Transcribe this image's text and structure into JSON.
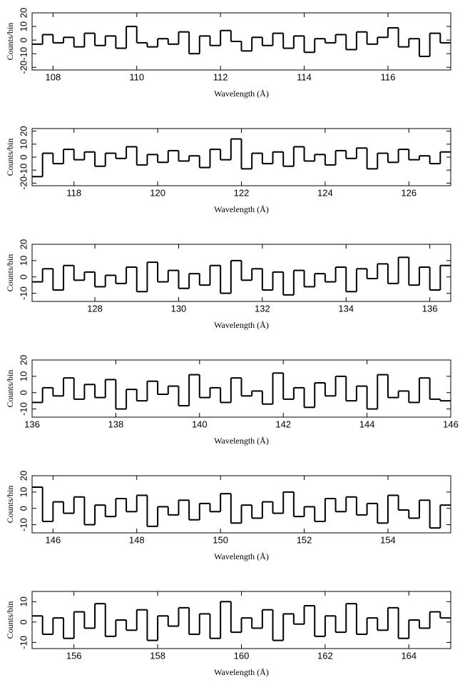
{
  "chart_data": [
    {
      "type": "histogram",
      "xlabel": "Wavelength (Å)",
      "ylabel": "Counts/bin",
      "color": "#000000",
      "bins": [
        107.5,
        107.75,
        108,
        108.25,
        108.5,
        108.75,
        109,
        109.25,
        109.5,
        109.75,
        110,
        110.25,
        110.5,
        110.75,
        111,
        111.25,
        111.5,
        111.75,
        112,
        112.25,
        112.5,
        112.75,
        113,
        113.25,
        113.5,
        113.75,
        114,
        114.25,
        114.5,
        114.75,
        115,
        115.25,
        115.5,
        115.75,
        116,
        116.25,
        116.5,
        116.75,
        117,
        117.25,
        117.5
      ],
      "values": [
        -3,
        4,
        -2,
        2,
        -5,
        5,
        -4,
        3,
        -6,
        10,
        -2,
        -5,
        1,
        -3,
        6,
        -10,
        3,
        -4,
        7,
        -1,
        -8,
        2,
        -4,
        5,
        -6,
        3,
        -9,
        1,
        -2,
        4,
        -7,
        6,
        -3,
        2,
        9,
        -5,
        1,
        -12,
        5,
        -2
      ],
      "xlim": [
        107.5,
        117.5
      ],
      "xticks": [
        108,
        110,
        112,
        114,
        116
      ],
      "ylim": [
        -22,
        20
      ],
      "yticks": [
        -20,
        -10,
        0,
        10,
        20
      ]
    },
    {
      "type": "histogram",
      "xlabel": "Wavelength (Å)",
      "ylabel": "Counts/bin",
      "color": "#000000",
      "bins": [
        117,
        117.25,
        117.5,
        117.75,
        118,
        118.25,
        118.5,
        118.75,
        119,
        119.25,
        119.5,
        119.75,
        120,
        120.25,
        120.5,
        120.75,
        121,
        121.25,
        121.5,
        121.75,
        122,
        122.25,
        122.5,
        122.75,
        123,
        123.25,
        123.5,
        123.75,
        124,
        124.25,
        124.5,
        124.75,
        125,
        125.25,
        125.5,
        125.75,
        126,
        126.25,
        126.5,
        126.75,
        127
      ],
      "values": [
        -15,
        3,
        -5,
        6,
        -2,
        4,
        -7,
        3,
        -1,
        8,
        -6,
        2,
        -4,
        5,
        -3,
        1,
        -8,
        6,
        -2,
        14,
        -9,
        3,
        -5,
        4,
        -7,
        8,
        -3,
        2,
        -6,
        5,
        -1,
        7,
        -9,
        3,
        -4,
        6,
        -2,
        1,
        -5,
        4
      ],
      "xlim": [
        117,
        127
      ],
      "xticks": [
        118,
        120,
        122,
        124,
        126
      ],
      "ylim": [
        -22,
        22
      ],
      "yticks": [
        -20,
        -10,
        0,
        10,
        20
      ]
    },
    {
      "type": "histogram",
      "xlabel": "Wavelength (Å)",
      "ylabel": "Counts/bin",
      "color": "#000000",
      "bins": [
        126.5,
        126.75,
        127,
        127.25,
        127.5,
        127.75,
        128,
        128.25,
        128.5,
        128.75,
        129,
        129.25,
        129.5,
        129.75,
        130,
        130.25,
        130.5,
        130.75,
        131,
        131.25,
        131.5,
        131.75,
        132,
        132.25,
        132.5,
        132.75,
        133,
        133.25,
        133.5,
        133.75,
        134,
        134.25,
        134.5,
        134.75,
        135,
        135.25,
        135.5,
        135.75,
        136,
        136.25,
        136.5
      ],
      "values": [
        -3,
        5,
        -8,
        7,
        -2,
        3,
        -6,
        1,
        -4,
        6,
        -9,
        9,
        -3,
        4,
        -7,
        2,
        -5,
        7,
        -10,
        10,
        -2,
        5,
        -8,
        3,
        -11,
        4,
        -6,
        2,
        -3,
        6,
        -9,
        5,
        -1,
        8,
        -4,
        12,
        -5,
        6,
        -8,
        7
      ],
      "xlim": [
        126.5,
        136.5
      ],
      "xticks": [
        128,
        130,
        132,
        134,
        136
      ],
      "ylim": [
        -15,
        20
      ],
      "yticks": [
        -10,
        0,
        10,
        20
      ]
    },
    {
      "type": "histogram",
      "xlabel": "Wavelength (Å)",
      "ylabel": "Counts/bin",
      "color": "#000000",
      "bins": [
        136,
        136.25,
        136.5,
        136.75,
        137,
        137.25,
        137.5,
        137.75,
        138,
        138.25,
        138.5,
        138.75,
        139,
        139.25,
        139.5,
        139.75,
        140,
        140.25,
        140.5,
        140.75,
        141,
        141.25,
        141.5,
        141.75,
        142,
        142.25,
        142.5,
        142.75,
        143,
        143.25,
        143.5,
        143.75,
        144,
        144.25,
        144.5,
        144.75,
        145,
        145.25,
        145.5,
        145.75,
        146
      ],
      "values": [
        -6,
        3,
        -2,
        9,
        -4,
        5,
        -3,
        8,
        -10,
        2,
        -5,
        7,
        -1,
        4,
        -8,
        11,
        -3,
        3,
        -6,
        9,
        -2,
        1,
        -7,
        12,
        -4,
        3,
        -9,
        6,
        -2,
        10,
        -5,
        4,
        -10,
        11,
        -3,
        1,
        -6,
        9,
        -4,
        -5
      ],
      "xlim": [
        136,
        146
      ],
      "xticks": [
        136,
        138,
        140,
        142,
        144,
        146
      ],
      "ylim": [
        -15,
        20
      ],
      "yticks": [
        -10,
        0,
        10,
        20
      ]
    },
    {
      "type": "histogram",
      "xlabel": "Wavelength (Å)",
      "ylabel": "Counts/bin",
      "color": "#000000",
      "bins": [
        145.5,
        145.75,
        146,
        146.25,
        146.5,
        146.75,
        147,
        147.25,
        147.5,
        147.75,
        148,
        148.25,
        148.5,
        148.75,
        149,
        149.25,
        149.5,
        149.75,
        150,
        150.25,
        150.5,
        150.75,
        151,
        151.25,
        151.5,
        151.75,
        152,
        152.25,
        152.5,
        152.75,
        153,
        153.25,
        153.5,
        153.75,
        154,
        154.25,
        154.5,
        154.75,
        155,
        155.25,
        155.5
      ],
      "values": [
        13,
        -8,
        4,
        -3,
        7,
        -10,
        2,
        -5,
        6,
        -2,
        8,
        -11,
        1,
        -4,
        5,
        -7,
        3,
        -2,
        9,
        -9,
        2,
        -6,
        4,
        -3,
        10,
        -5,
        1,
        -8,
        6,
        -2,
        7,
        -4,
        3,
        -9,
        8,
        -1,
        -6,
        5,
        -12,
        2
      ],
      "xlim": [
        145.5,
        155.5
      ],
      "xticks": [
        146,
        148,
        150,
        152,
        154
      ],
      "ylim": [
        -15,
        20
      ],
      "yticks": [
        -10,
        0,
        10,
        20
      ]
    },
    {
      "type": "histogram",
      "xlabel": "Wavelength (Å)",
      "ylabel": "Counts/bin",
      "color": "#000000",
      "bins": [
        155,
        155.25,
        155.5,
        155.75,
        156,
        156.25,
        156.5,
        156.75,
        157,
        157.25,
        157.5,
        157.75,
        158,
        158.25,
        158.5,
        158.75,
        159,
        159.25,
        159.5,
        159.75,
        160,
        160.25,
        160.5,
        160.75,
        161,
        161.25,
        161.5,
        161.75,
        162,
        162.25,
        162.5,
        162.75,
        163,
        163.25,
        163.5,
        163.75,
        164,
        164.25,
        164.5,
        164.75,
        165
      ],
      "values": [
        3,
        -6,
        2,
        -8,
        5,
        -3,
        9,
        -7,
        1,
        -4,
        6,
        -9,
        3,
        -2,
        7,
        -6,
        4,
        -8,
        10,
        -5,
        2,
        -3,
        6,
        -9,
        4,
        -1,
        8,
        -7,
        3,
        -5,
        9,
        -6,
        2,
        -4,
        7,
        -8,
        1,
        -3,
        5,
        2
      ],
      "xlim": [
        155,
        165
      ],
      "xticks": [
        156,
        158,
        160,
        162,
        164
      ],
      "ylim": [
        -13,
        15
      ],
      "yticks": [
        -10,
        0,
        10
      ]
    }
  ]
}
